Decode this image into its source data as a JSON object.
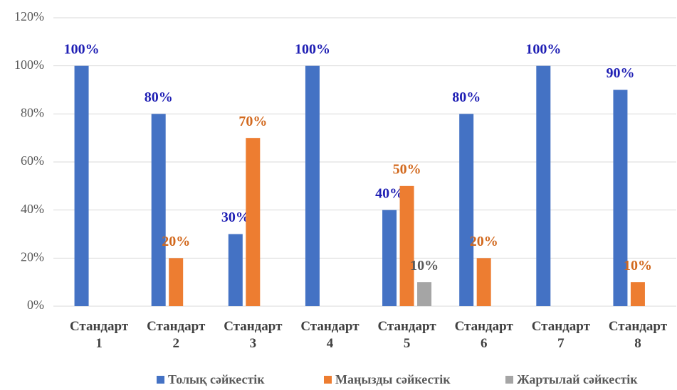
{
  "chart_data": {
    "type": "bar",
    "categories": [
      "Стандарт 1",
      "Стандарт 2",
      "Стандарт 3",
      "Стандарт 4",
      "Стандарт 5",
      "Стандарт 6",
      "Стандарт 7",
      "Стандарт 8"
    ],
    "series": [
      {
        "name": "Толық сәйкестік",
        "color": "#4472c4",
        "label_color": "#1f1fb4",
        "values": [
          100,
          80,
          30,
          100,
          40,
          80,
          100,
          90
        ],
        "value_labels": [
          "100%",
          "80%",
          "30%",
          "100%",
          "40%",
          "80%",
          "100%",
          "90%"
        ]
      },
      {
        "name": "Маңызды сәйкестік",
        "color": "#ed7d31",
        "label_color": "#d2691e",
        "values": [
          null,
          20,
          70,
          null,
          50,
          20,
          null,
          10
        ],
        "value_labels": [
          null,
          "20%",
          "70%",
          null,
          "50%",
          "20%",
          null,
          "10%"
        ]
      },
      {
        "name": "Жартылай сәйкестік",
        "color": "#a5a5a5",
        "label_color": "#595959",
        "values": [
          null,
          null,
          null,
          null,
          10,
          null,
          null,
          null
        ],
        "value_labels": [
          null,
          null,
          null,
          null,
          "10%",
          null,
          null,
          null
        ]
      }
    ],
    "ylim": [
      0,
      120
    ],
    "yticks": [
      {
        "value": 0,
        "label": "0%"
      },
      {
        "value": 20,
        "label": "20%"
      },
      {
        "value": 40,
        "label": "40%"
      },
      {
        "value": 60,
        "label": "60%"
      },
      {
        "value": 80,
        "label": "80%"
      },
      {
        "value": 100,
        "label": "100%"
      },
      {
        "value": 120,
        "label": "120%"
      }
    ],
    "grid": true,
    "legend": "bottom"
  }
}
